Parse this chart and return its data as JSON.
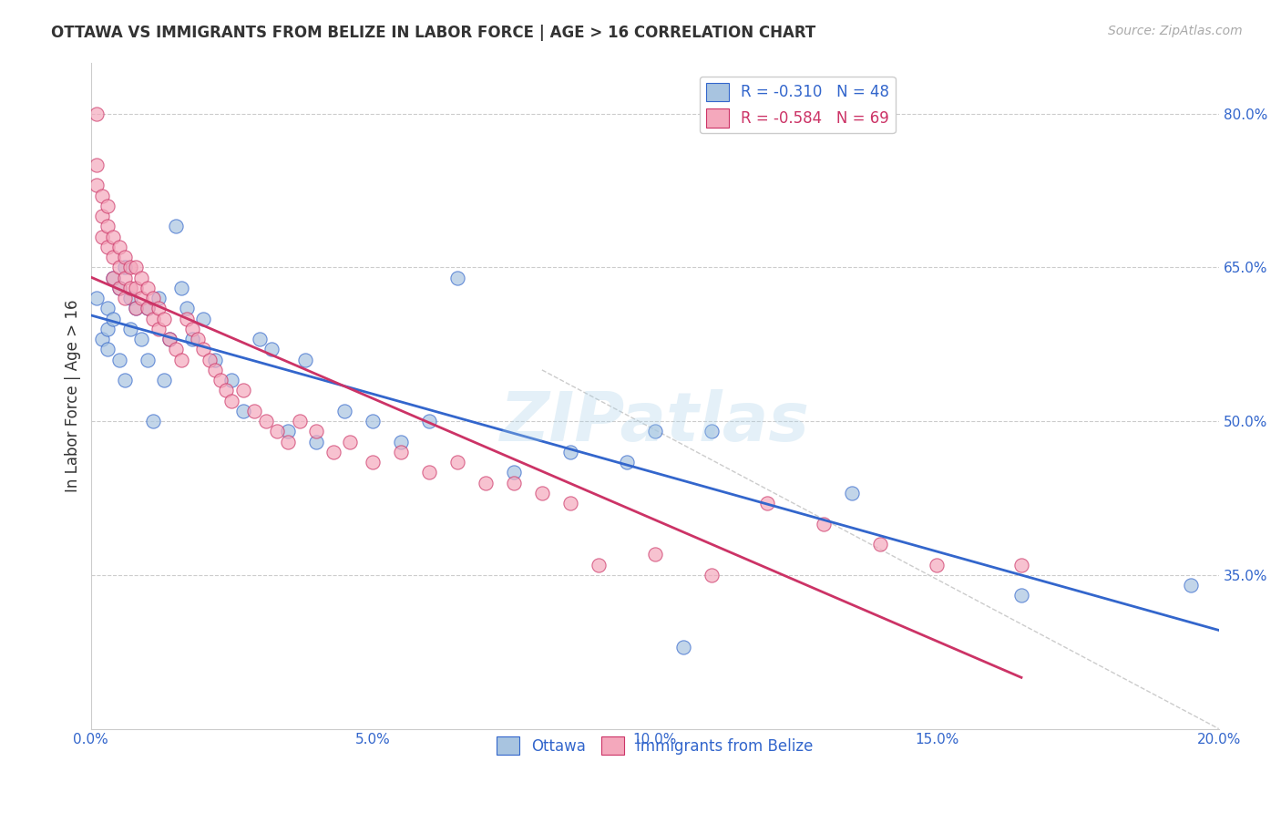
{
  "title": "OTTAWA VS IMMIGRANTS FROM BELIZE IN LABOR FORCE | AGE > 16 CORRELATION CHART",
  "source": "Source: ZipAtlas.com",
  "xlabel": "",
  "ylabel": "In Labor Force | Age > 16",
  "watermark": "ZIPatlas",
  "xlim": [
    0.0,
    0.2
  ],
  "ylim": [
    0.2,
    0.85
  ],
  "xticks": [
    0.0,
    0.05,
    0.1,
    0.15,
    0.2
  ],
  "xtick_labels": [
    "0.0%",
    "5.0%",
    "10.0%",
    "15.0%",
    "20.0%"
  ],
  "yticks": [
    0.35,
    0.5,
    0.65,
    0.8
  ],
  "ytick_labels": [
    "35.0%",
    "50.0%",
    "65.0%",
    "80.0%"
  ],
  "grid_color": "#cccccc",
  "background_color": "#ffffff",
  "legend1_label": "Ottawa",
  "legend2_label": "Immigrants from Belize",
  "R1": -0.31,
  "N1": 48,
  "R2": -0.584,
  "N2": 69,
  "color_ottawa": "#a8c4e0",
  "color_belize": "#f4a8bc",
  "color_line_ottawa": "#3366cc",
  "color_line_belize": "#cc3366",
  "scatter_ottawa_x": [
    0.001,
    0.002,
    0.003,
    0.003,
    0.003,
    0.004,
    0.004,
    0.005,
    0.005,
    0.006,
    0.006,
    0.007,
    0.007,
    0.008,
    0.009,
    0.01,
    0.01,
    0.011,
    0.012,
    0.013,
    0.014,
    0.015,
    0.016,
    0.017,
    0.018,
    0.02,
    0.022,
    0.025,
    0.027,
    0.03,
    0.032,
    0.035,
    0.038,
    0.04,
    0.045,
    0.05,
    0.055,
    0.06,
    0.065,
    0.075,
    0.085,
    0.095,
    0.1,
    0.105,
    0.11,
    0.135,
    0.165,
    0.195
  ],
  "scatter_ottawa_y": [
    0.62,
    0.58,
    0.61,
    0.59,
    0.57,
    0.64,
    0.6,
    0.63,
    0.56,
    0.65,
    0.54,
    0.62,
    0.59,
    0.61,
    0.58,
    0.56,
    0.61,
    0.5,
    0.62,
    0.54,
    0.58,
    0.69,
    0.63,
    0.61,
    0.58,
    0.6,
    0.56,
    0.54,
    0.51,
    0.58,
    0.57,
    0.49,
    0.56,
    0.48,
    0.51,
    0.5,
    0.48,
    0.5,
    0.64,
    0.45,
    0.47,
    0.46,
    0.49,
    0.28,
    0.49,
    0.43,
    0.33,
    0.34
  ],
  "scatter_belize_x": [
    0.001,
    0.001,
    0.001,
    0.002,
    0.002,
    0.002,
    0.003,
    0.003,
    0.003,
    0.004,
    0.004,
    0.004,
    0.005,
    0.005,
    0.005,
    0.006,
    0.006,
    0.006,
    0.007,
    0.007,
    0.008,
    0.008,
    0.008,
    0.009,
    0.009,
    0.01,
    0.01,
    0.011,
    0.011,
    0.012,
    0.012,
    0.013,
    0.014,
    0.015,
    0.016,
    0.017,
    0.018,
    0.019,
    0.02,
    0.021,
    0.022,
    0.023,
    0.024,
    0.025,
    0.027,
    0.029,
    0.031,
    0.033,
    0.035,
    0.037,
    0.04,
    0.043,
    0.046,
    0.05,
    0.055,
    0.06,
    0.065,
    0.07,
    0.075,
    0.08,
    0.085,
    0.09,
    0.1,
    0.11,
    0.12,
    0.13,
    0.14,
    0.15,
    0.165
  ],
  "scatter_belize_y": [
    0.8,
    0.75,
    0.73,
    0.72,
    0.7,
    0.68,
    0.71,
    0.69,
    0.67,
    0.68,
    0.66,
    0.64,
    0.67,
    0.65,
    0.63,
    0.66,
    0.64,
    0.62,
    0.65,
    0.63,
    0.65,
    0.63,
    0.61,
    0.64,
    0.62,
    0.63,
    0.61,
    0.62,
    0.6,
    0.61,
    0.59,
    0.6,
    0.58,
    0.57,
    0.56,
    0.6,
    0.59,
    0.58,
    0.57,
    0.56,
    0.55,
    0.54,
    0.53,
    0.52,
    0.53,
    0.51,
    0.5,
    0.49,
    0.48,
    0.5,
    0.49,
    0.47,
    0.48,
    0.46,
    0.47,
    0.45,
    0.46,
    0.44,
    0.44,
    0.43,
    0.42,
    0.36,
    0.37,
    0.35,
    0.42,
    0.4,
    0.38,
    0.36,
    0.36
  ]
}
